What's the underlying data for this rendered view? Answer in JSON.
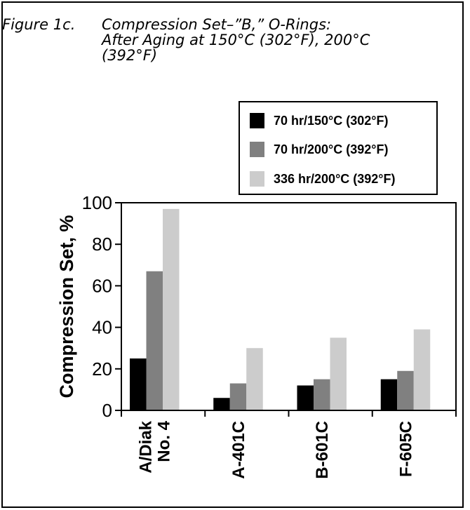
{
  "figure": {
    "label": "Figure 1c.",
    "title_line1": "Compression Set–”B,” O-Rings:",
    "title_line2": "After Aging at 150°C (302°F), 200°C",
    "title_line3": "(392°F)"
  },
  "colors": {
    "series1": "#000000",
    "series2": "#808080",
    "series3": "#cccccc",
    "axis": "#000000"
  },
  "chart_data": {
    "type": "bar",
    "categories": [
      "A/Diak No. 4",
      "A-401C",
      "B-601C",
      "F-605C"
    ],
    "category_lines": [
      [
        "A/Diak",
        "No. 4"
      ],
      [
        "A-401C"
      ],
      [
        "B-601C"
      ],
      [
        "F-605C"
      ]
    ],
    "series": [
      {
        "name": "70 hr/150°C (302°F)",
        "values": [
          25,
          6,
          12,
          15
        ]
      },
      {
        "name": "70 hr/200°C (392°F)",
        "values": [
          67,
          13,
          15,
          19
        ]
      },
      {
        "name": "336 hr/200°C (392°F)",
        "values": [
          97,
          30,
          35,
          39
        ]
      }
    ],
    "ylabel": "Compression Set, %",
    "xlabel": "",
    "ylim": [
      0,
      100
    ],
    "yticks": [
      "0",
      "20",
      "40",
      "60",
      "80",
      "100"
    ],
    "legend_position": "top-right",
    "grid": false
  }
}
